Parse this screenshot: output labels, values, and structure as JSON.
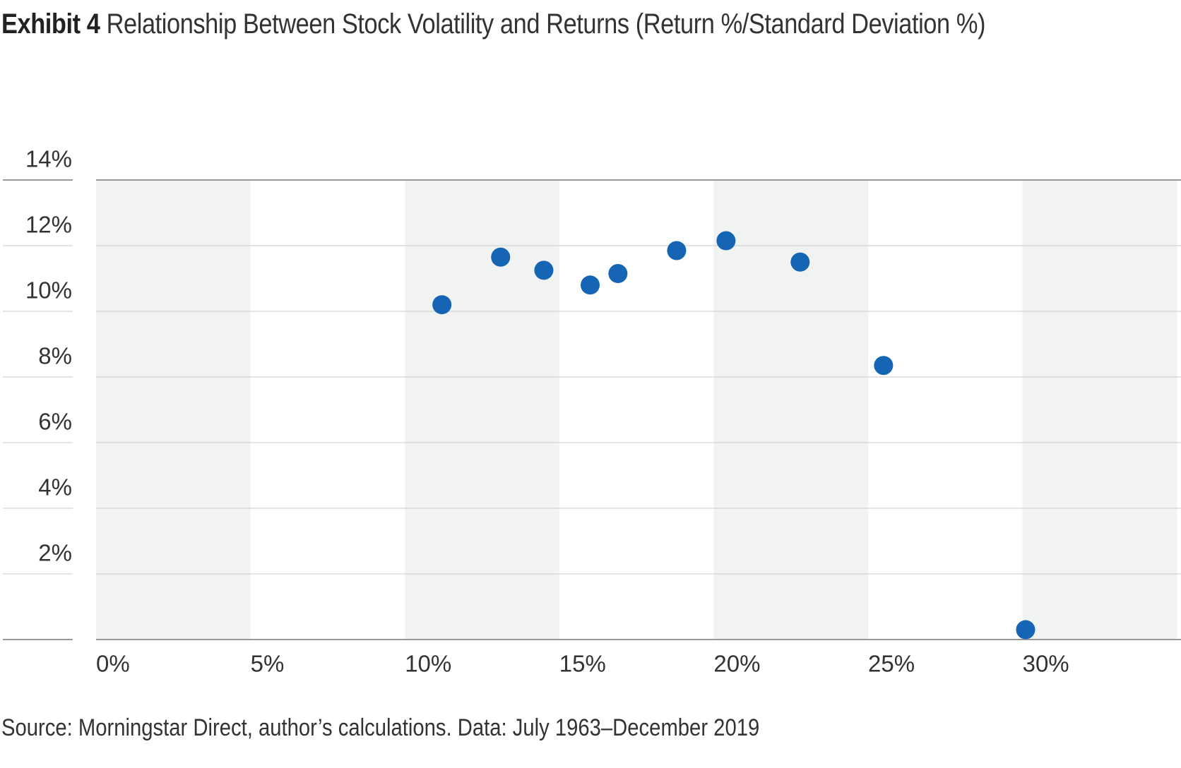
{
  "header": {
    "exhibit_label": "Exhibit 4",
    "title": "Relationship Between Stock Volatility and Returns (Return %/Standard Deviation %)"
  },
  "footer": {
    "source": "Source: Morningstar Direct, author’s calculations. Data: July 1963–December 2019"
  },
  "chart_data": {
    "type": "scatter",
    "title": "Relationship Between Stock Volatility and Returns (Return %/Standard Deviation %)",
    "xlabel": "",
    "ylabel": "",
    "xlim": [
      0,
      35
    ],
    "ylim": [
      0,
      14
    ],
    "xticks": [
      0,
      5,
      10,
      15,
      20,
      25,
      30
    ],
    "xtick_labels": [
      "0%",
      "5%",
      "10%",
      "15%",
      "20%",
      "25%",
      "30%"
    ],
    "yticks": [
      2,
      4,
      6,
      8,
      10,
      12,
      14
    ],
    "ytick_labels": [
      "2%",
      "4%",
      "6%",
      "8%",
      "10%",
      "12%",
      "14%"
    ],
    "grid": "horizontal",
    "alternating_column_bands": true,
    "series": [
      {
        "color": "#1565b4",
        "points": [
          {
            "x": 11.2,
            "y": 10.2
          },
          {
            "x": 13.1,
            "y": 11.65
          },
          {
            "x": 14.5,
            "y": 11.25
          },
          {
            "x": 16.0,
            "y": 10.8
          },
          {
            "x": 16.9,
            "y": 11.15
          },
          {
            "x": 18.8,
            "y": 11.85
          },
          {
            "x": 20.4,
            "y": 12.15
          },
          {
            "x": 22.8,
            "y": 11.5
          },
          {
            "x": 25.5,
            "y": 8.35
          },
          {
            "x": 30.1,
            "y": 0.3
          }
        ]
      }
    ],
    "colors": {
      "band": "#f1f2f2",
      "gridline": "#d4d4d4",
      "axis": "#999999",
      "tick_text": "#333333"
    }
  }
}
